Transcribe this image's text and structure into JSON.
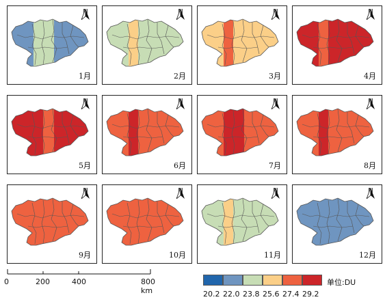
{
  "unit_label": "单位:DU",
  "legend": {
    "colors": [
      "#2166ac",
      "#6f95c0",
      "#c7ddb5",
      "#fbcf88",
      "#ee6240",
      "#cc2529"
    ],
    "ticks": [
      "20.2",
      "22.0",
      "23.8",
      "25.6",
      "27.4",
      "29.2"
    ]
  },
  "scale": {
    "ticks": [
      "0",
      "200",
      "400",
      "800 km"
    ]
  },
  "north_label": "N",
  "months": [
    {
      "label": "1月",
      "base": "#6f95c0",
      "strips": [
        "#c7ddb5",
        "#c7ddb5"
      ]
    },
    {
      "label": "2月",
      "base": "#c7ddb5",
      "strips": [
        "#fbcf88",
        "#c7ddb5"
      ]
    },
    {
      "label": "3月",
      "base": "#fbcf88",
      "strips": [
        "#ee6240",
        "#fbcf88"
      ]
    },
    {
      "label": "4月",
      "base": "#cc2529",
      "strips": [
        "#ee6240",
        "#cc2529"
      ]
    },
    {
      "label": "5月",
      "base": "#cc2529",
      "strips": [
        "#cc2529",
        "#ee6240"
      ]
    },
    {
      "label": "6月",
      "base": "#ee6240",
      "strips": [
        "#cc2529",
        "#ee6240"
      ]
    },
    {
      "label": "7月",
      "base": "#ee6240",
      "strips": [
        "#cc2529",
        "#cc2529"
      ]
    },
    {
      "label": "8月",
      "base": "#ee6240",
      "strips": [
        "#cc2529",
        "#ee6240"
      ]
    },
    {
      "label": "9月",
      "base": "#ee6240",
      "strips": [
        "#ee6240",
        "#ee6240"
      ]
    },
    {
      "label": "10月",
      "base": "#ee6240",
      "strips": [
        "#ee6240",
        "#ee6240"
      ]
    },
    {
      "label": "11月",
      "base": "#c7ddb5",
      "strips": [
        "#fbcf88",
        "#c7ddb5"
      ]
    },
    {
      "label": "12月",
      "base": "#6f95c0",
      "strips": [
        "#6f95c0",
        "#6f95c0"
      ]
    }
  ]
}
